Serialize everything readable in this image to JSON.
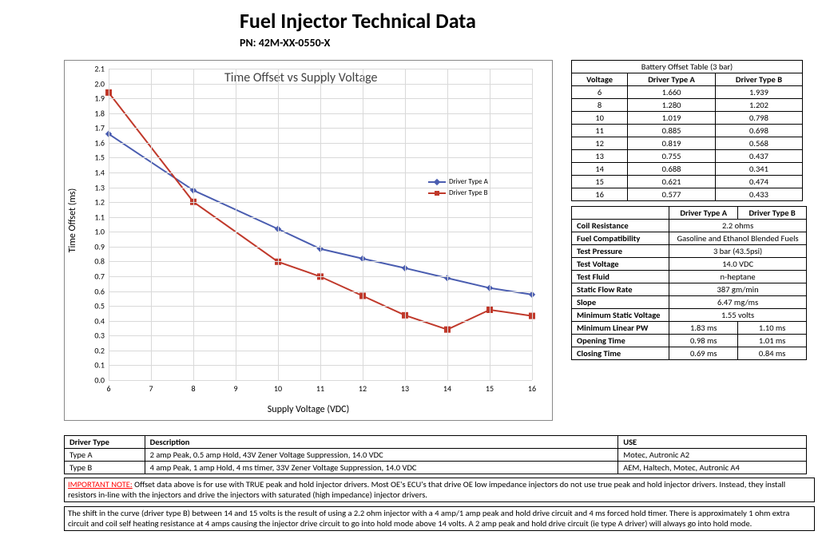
{
  "title": "Fuel Injector Technical Data",
  "part_number": "PN: 42M-XX-0550-X",
  "chart": {
    "type": "line",
    "title": "Time Offset vs Supply Voltage",
    "xlabel": "Supply Voltage (VDC)",
    "ylabel": "Time Offset (ms)",
    "x_ticks": [
      6,
      7,
      8,
      9,
      10,
      11,
      12,
      13,
      14,
      15,
      16
    ],
    "y_ticks": [
      0.0,
      0.1,
      0.2,
      0.3,
      0.4,
      0.5,
      0.6,
      0.7,
      0.8,
      0.9,
      1.0,
      1.1,
      1.2,
      1.3,
      1.4,
      1.5,
      1.6,
      1.7,
      1.8,
      1.9,
      2.0,
      2.1
    ],
    "xlim": [
      6,
      16
    ],
    "ylim": [
      0.0,
      2.1
    ],
    "grid_color": "#d9d9d9",
    "background_color": "#ffffff",
    "label_fontsize": 12,
    "tick_fontsize": 10,
    "series": [
      {
        "name": "Driver Type A",
        "color": "#4a5db0",
        "marker_shape": "diamond",
        "marker_size": 7,
        "line_width": 2,
        "x": [
          6,
          8,
          10,
          11,
          12,
          13,
          14,
          15,
          16
        ],
        "y": [
          1.66,
          1.28,
          1.019,
          0.885,
          0.819,
          0.755,
          0.688,
          0.621,
          0.577
        ]
      },
      {
        "name": "Driver Type B",
        "color": "#c0392b",
        "marker_shape": "square",
        "marker_size": 7,
        "line_width": 2,
        "x": [
          6,
          8,
          10,
          11,
          12,
          13,
          14,
          15,
          16
        ],
        "y": [
          1.939,
          1.202,
          0.798,
          0.698,
          0.568,
          0.437,
          0.341,
          0.474,
          0.433
        ]
      }
    ]
  },
  "battery_table": {
    "title": "Battery Offset Table (3 bar)",
    "columns": [
      "Voltage",
      "Driver Type A",
      "Driver Type B"
    ],
    "rows": [
      [
        "6",
        "1.660",
        "1.939"
      ],
      [
        "8",
        "1.280",
        "1.202"
      ],
      [
        "10",
        "1.019",
        "0.798"
      ],
      [
        "11",
        "0.885",
        "0.698"
      ],
      [
        "12",
        "0.819",
        "0.568"
      ],
      [
        "13",
        "0.755",
        "0.437"
      ],
      [
        "14",
        "0.688",
        "0.341"
      ],
      [
        "15",
        "0.621",
        "0.474"
      ],
      [
        "16",
        "0.577",
        "0.433"
      ]
    ]
  },
  "spec_table": {
    "columns": [
      "",
      "Driver Type A",
      "Driver Type B"
    ],
    "rows": [
      {
        "label": "Coil Resistance",
        "a": "2.2 ohms",
        "span": true
      },
      {
        "label": "Fuel Compatibility",
        "a": "Gasoline and Ethanol Blended Fuels",
        "span": true
      },
      {
        "label": "Test Pressure",
        "a": "3 bar (43.5psi)",
        "span": true
      },
      {
        "label": "Test Voltage",
        "a": "14.0 VDC",
        "span": true
      },
      {
        "label": "Test Fluid",
        "a": "n-heptane",
        "span": true
      },
      {
        "label": "Static Flow Rate",
        "a": "387 gm/min",
        "span": true
      },
      {
        "label": "Slope",
        "a": "6.47 mg/ms",
        "span": true
      },
      {
        "label": "Minimum Static Voltage",
        "a": "1.55 volts",
        "span": true
      },
      {
        "label": "Minimum Linear PW",
        "a": "1.83 ms",
        "b": "1.10 ms",
        "span": false
      },
      {
        "label": "Opening Time",
        "a": "0.98 ms",
        "b": "1.01 ms",
        "span": false
      },
      {
        "label": "Closing Time",
        "a": "0.69 ms",
        "b": "0.84 ms",
        "span": false
      }
    ]
  },
  "driver_desc": {
    "columns": [
      "Driver Type",
      "Description",
      "USE"
    ],
    "rows": [
      [
        "Type A",
        "2 amp Peak, 0.5 amp Hold, 43V Zener Voltage Suppression, 14.0 VDC",
        "Motec, Autronic A2"
      ],
      [
        "Type B",
        "4 amp Peak, 1 amp Hold, 4 ms timer, 33V Zener Voltage Suppression, 14.0 VDC",
        "AEM, Haltech, Motec, Autronic A4"
      ]
    ]
  },
  "note1_prefix": "IMPORTANT NOTE:",
  "note1_body": " Offset data above is for use with TRUE peak and hold injector drivers.  Most OE's ECU's that drive OE low impedance injectors do not use true peak and hold injector drivers.  Instead, they install resistors in-line with the injectors and drive the injectors with saturated (high impedance) injector drivers.",
  "note2": "The shift in the curve (driver type B) between 14 and 15 volts is the result of using a 2.2 ohm injector with a 4 amp/1 amp peak and hold drive circuit and 4 ms forced hold timer. There is approximately 1 ohm extra circuit and coil self heating resistance at 4 amps causing the injector drive circuit to go into hold mode above 14 volts. A 2 amp peak and hold drive circuit (ie type A driver) will always go into hold mode."
}
